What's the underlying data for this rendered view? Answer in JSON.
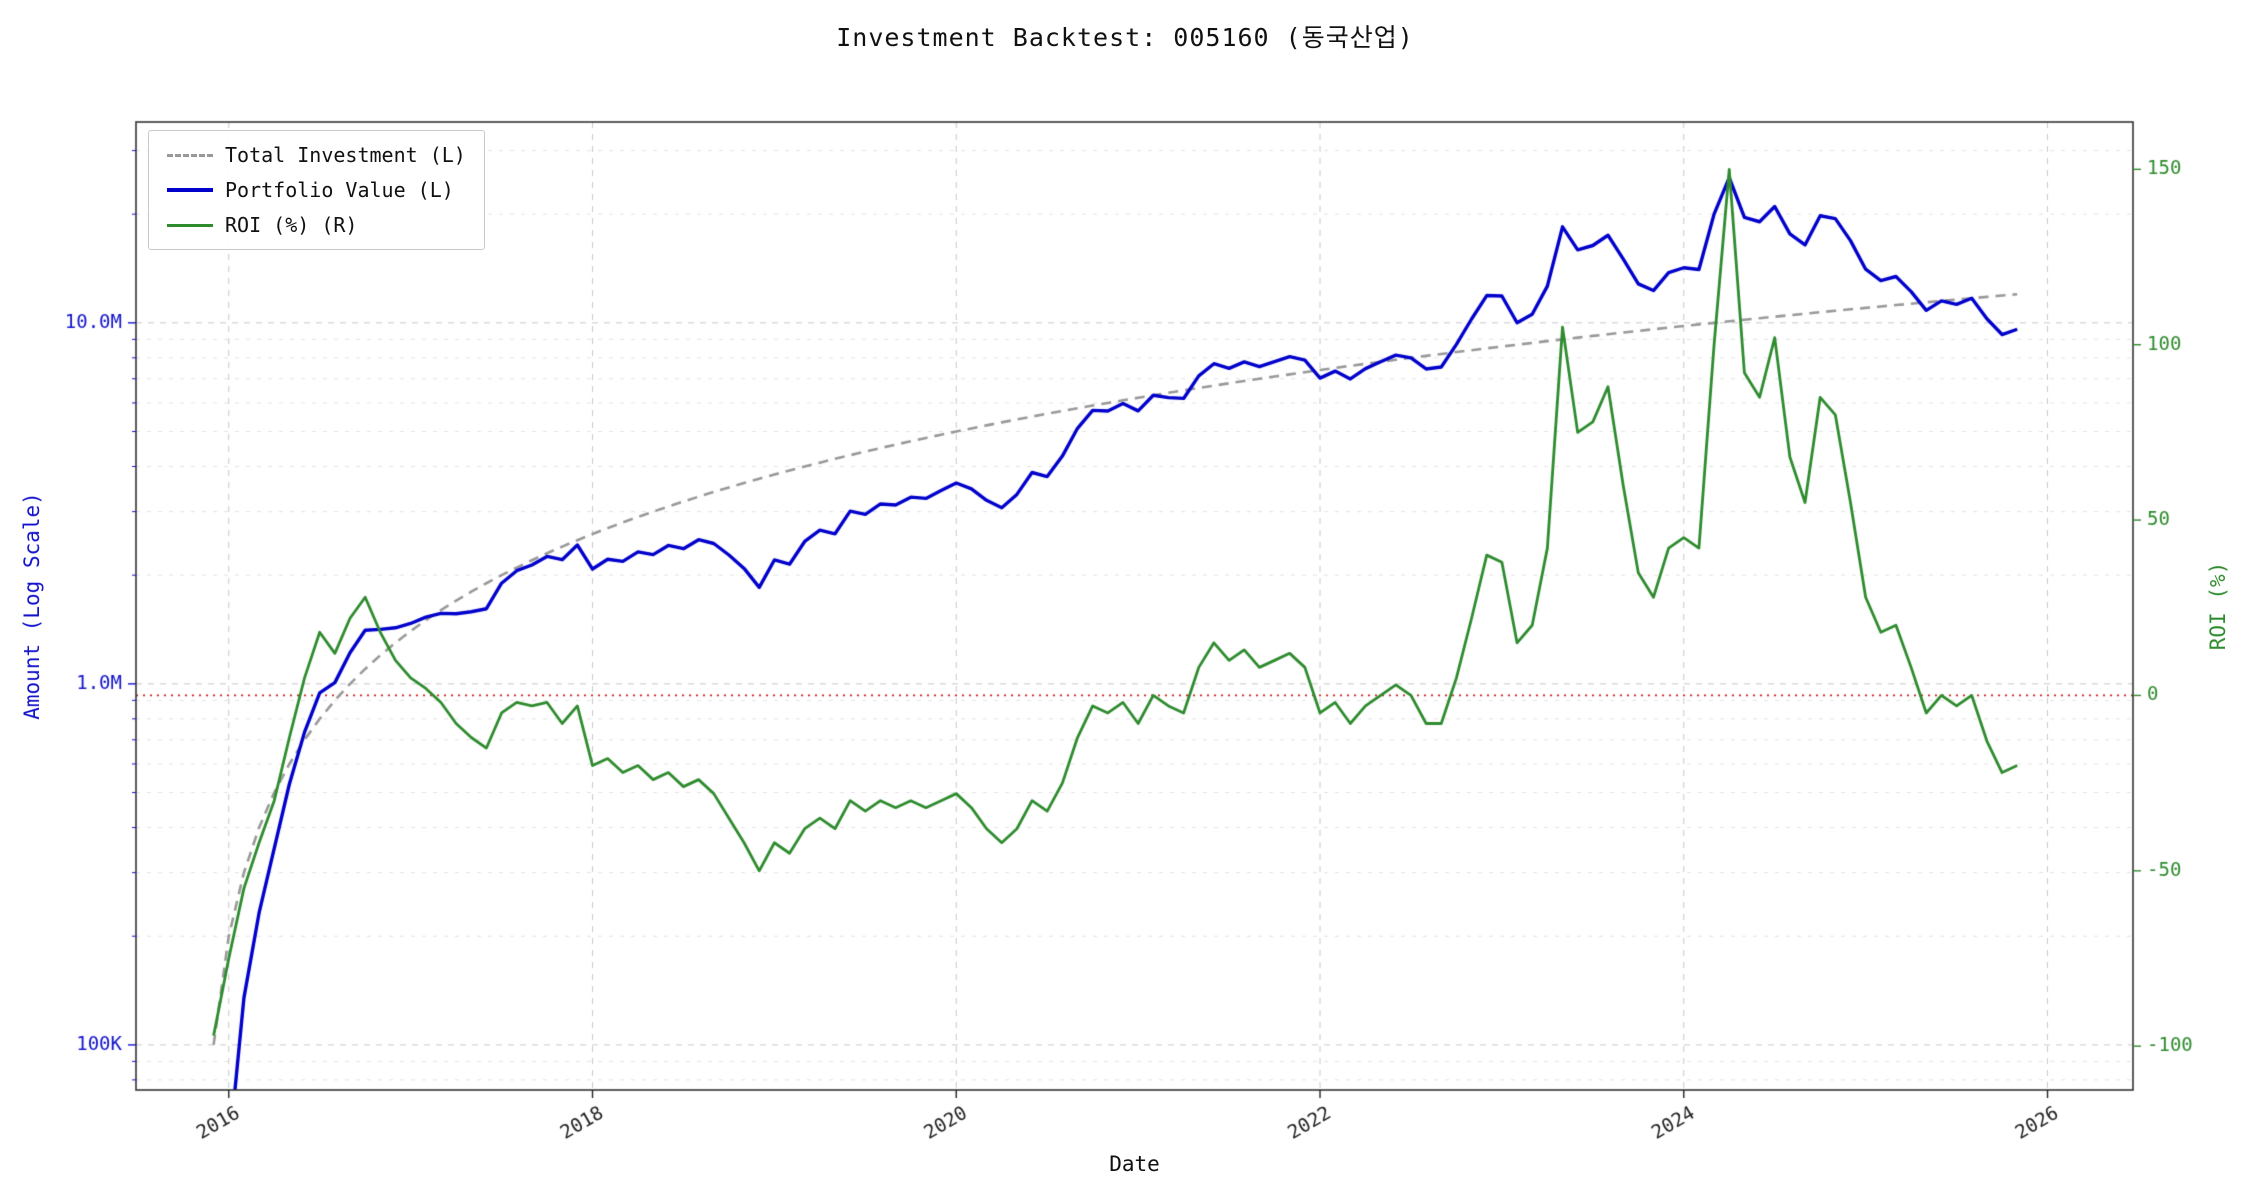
{
  "title": "Investment Backtest: 005160 (동국산업)",
  "chart_data": {
    "type": "line",
    "title": "Investment Backtest: 005160 (동국산업)",
    "x_axis": {
      "label": "Date",
      "ticks": [
        2016,
        2018,
        2020,
        2022,
        2024,
        2026
      ],
      "range": [
        2015.49,
        2026.47
      ],
      "start_decimal_year": 2015.9167,
      "step_decimal_year": 0.0833333
    },
    "y_left": {
      "label": "Amount (Log Scale)",
      "scale": "log",
      "range": [
        75000,
        36000000
      ],
      "color": "#1414cc",
      "ticks": [
        {
          "value": 100000,
          "text": "100K"
        },
        {
          "value": 1000000,
          "text": "1.0M"
        },
        {
          "value": 10000000,
          "text": "10.0M"
        }
      ]
    },
    "y_right": {
      "label": "ROI (%)",
      "scale": "linear",
      "range": [
        -112.5,
        163.5
      ],
      "color": "#2e8b2e",
      "ticks": [
        -100,
        -50,
        0,
        50,
        100,
        150
      ]
    },
    "zero_line": {
      "axis": "right",
      "value": 0,
      "color": "#cc2222",
      "style": "dotted"
    },
    "grid": true,
    "legend": {
      "position": "upper-left"
    },
    "series": [
      {
        "name": "Total Investment (L)",
        "axis": "left",
        "color": "#999999",
        "dash": [
          10,
          7
        ],
        "width": 2.6,
        "values": [
          100000,
          200000,
          300000,
          400000,
          500000,
          600000,
          700000,
          800000,
          900000,
          1000000,
          1100000,
          1200000,
          1300000,
          1400000,
          1500000,
          1600000,
          1700000,
          1800000,
          1900000,
          2000000,
          2100000,
          2200000,
          2300000,
          2400000,
          2500000,
          2600000,
          2700000,
          2800000,
          2900000,
          3000000,
          3100000,
          3200000,
          3300000,
          3400000,
          3500000,
          3600000,
          3700000,
          3800000,
          3900000,
          4000000,
          4100000,
          4200000,
          4300000,
          4400000,
          4500000,
          4600000,
          4700000,
          4800000,
          4900000,
          5000000,
          5100000,
          5200000,
          5300000,
          5400000,
          5500000,
          5600000,
          5700000,
          5800000,
          5900000,
          6000000,
          6100000,
          6200000,
          6300000,
          6400000,
          6500000,
          6600000,
          6700000,
          6800000,
          6900000,
          7000000,
          7100000,
          7200000,
          7300000,
          7400000,
          7500000,
          7600000,
          7700000,
          7800000,
          7900000,
          8000000,
          8100000,
          8200000,
          8300000,
          8400000,
          8500000,
          8600000,
          8700000,
          8800000,
          8900000,
          9000000,
          9100000,
          9200000,
          9300000,
          9400000,
          9500000,
          9600000,
          9700000,
          9800000,
          9900000,
          10000000,
          10100000,
          10200000,
          10300000,
          10400000,
          10500000,
          10600000,
          10700000,
          10800000,
          10900000,
          11000000,
          11100000,
          11200000,
          11300000,
          11400000,
          11500000,
          11600000,
          11700000,
          11800000,
          11900000,
          12000000
        ]
      },
      {
        "name": "Portfolio Value (L)",
        "axis": "left",
        "color": "#0000cc",
        "dash": [],
        "width": 3.4,
        "values": [
          3000,
          50000,
          135000,
          232000,
          350000,
          528000,
          735000,
          944000,
          1008000,
          1220000,
          1408000,
          1416000,
          1430000,
          1470000,
          1530000,
          1568000,
          1564000,
          1584000,
          1615000,
          1900000,
          2058000,
          2134000,
          2254000,
          2208000,
          2425000,
          2080000,
          2214000,
          2184000,
          2320000,
          2280000,
          2418000,
          2368000,
          2508000,
          2448000,
          2275000,
          2088000,
          1850000,
          2204000,
          2145000,
          2480000,
          2665000,
          2604000,
          3010000,
          2948000,
          3150000,
          3128000,
          3290000,
          3264000,
          3430000,
          3600000,
          3468000,
          3224000,
          3074000,
          3348000,
          3850000,
          3752000,
          4275000,
          5104000,
          5723000,
          5700000,
          5978000,
          5704000,
          6300000,
          6208000,
          6175000,
          7128000,
          7705000,
          7480000,
          7797000,
          7560000,
          7810000,
          8064000,
          7884000,
          7030000,
          7350000,
          6992000,
          7469000,
          7800000,
          8137000,
          8000000,
          7452000,
          7544000,
          8715000,
          10248000,
          11900000,
          11868000,
          10005000,
          10560000,
          12638000,
          18450000,
          15925000,
          16376000,
          17484000,
          15040000,
          12825000,
          12288000,
          13774000,
          14210000,
          14058000,
          20000000,
          25250000,
          19584000,
          19055000,
          21008000,
          17640000,
          16430000,
          19795000,
          19440000,
          16895000,
          14080000,
          13098000,
          13440000,
          12204000,
          10830000,
          11500000,
          11252000,
          11700000,
          10266000,
          9282000,
          9600000
        ]
      },
      {
        "name": "ROI (%) (R)",
        "axis": "right",
        "color": "#2e8b2e",
        "dash": [],
        "width": 2.8,
        "values": [
          -97,
          -75,
          -55,
          -42,
          -30,
          -12,
          5,
          18,
          12,
          22,
          28,
          18,
          10,
          5,
          2,
          -2,
          -8,
          -12,
          -15,
          -5,
          -2,
          -3,
          -2,
          -8,
          -3,
          -20,
          -18,
          -22,
          -20,
          -24,
          -22,
          -26,
          -24,
          -28,
          -35,
          -42,
          -50,
          -42,
          -45,
          -38,
          -35,
          -38,
          -30,
          -33,
          -30,
          -32,
          -30,
          -32,
          -30,
          -28,
          -32,
          -38,
          -42,
          -38,
          -30,
          -33,
          -25,
          -12,
          -3,
          -5,
          -2,
          -8,
          0,
          -3,
          -5,
          8,
          15,
          10,
          13,
          8,
          10,
          12,
          8,
          -5,
          -2,
          -8,
          -3,
          0,
          3,
          0,
          -8,
          -8,
          5,
          22,
          40,
          38,
          15,
          20,
          42,
          105,
          75,
          78,
          88,
          60,
          35,
          28,
          42,
          45,
          42,
          100,
          150,
          92,
          85,
          102,
          68,
          55,
          85,
          80,
          55,
          28,
          18,
          20,
          8,
          -5,
          0,
          -3,
          0,
          -13,
          -22,
          -20
        ]
      }
    ]
  }
}
